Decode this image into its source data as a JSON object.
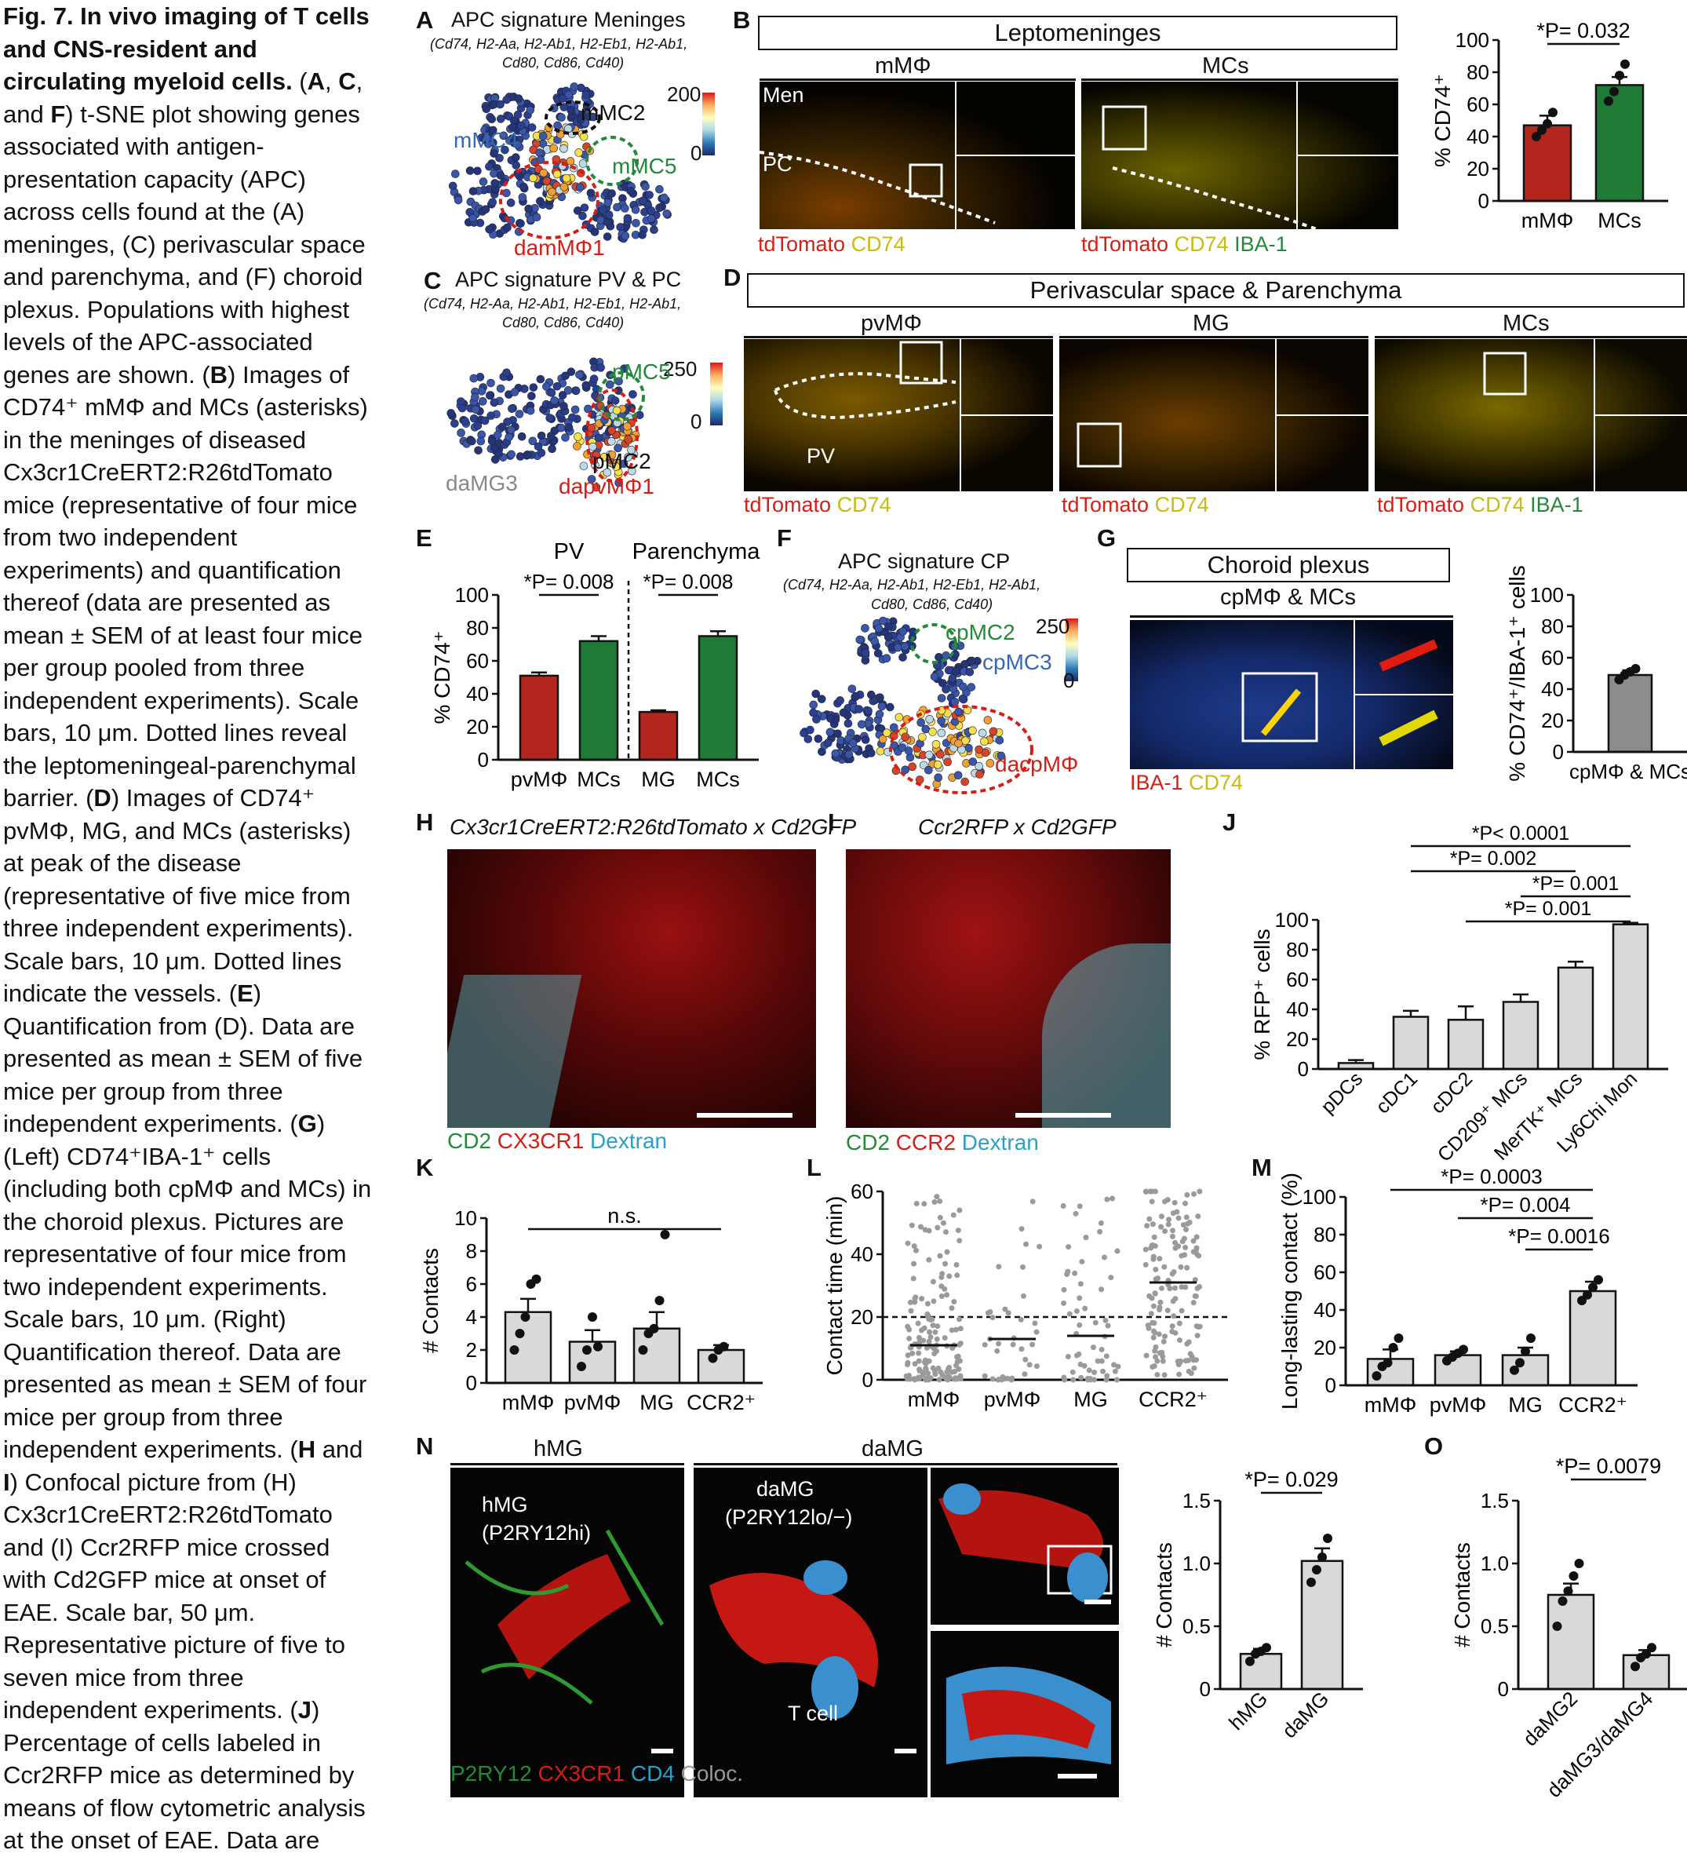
{
  "caption_segments": [
    {
      "text": "Fig. 7. In vivo imaging of T cells and CNS-resident and circulating myeloid cells.",
      "bold": true
    },
    {
      "text": " (",
      "bold": false
    },
    {
      "text": "A",
      "bold": true
    },
    {
      "text": ", ",
      "bold": false
    },
    {
      "text": "C",
      "bold": true
    },
    {
      "text": ", and ",
      "bold": false
    },
    {
      "text": "F",
      "bold": true
    },
    {
      "text": ") t-SNE plot showing genes associated with antigen-presentation capacity (APC) across cells found at the (A) meninges, (C) perivascular space and parenchyma, and (F) choroid plexus. Populations with highest levels of the APC-associated genes are shown. (",
      "bold": false
    },
    {
      "text": "B",
      "bold": true
    },
    {
      "text": ") Images of CD74⁺ mMΦ and MCs (asterisks) in the meninges of diseased Cx3cr1CreERT2:R26tdTomato mice (representative of four mice from two independent experiments) and quantification thereof (data are presented as mean ± SEM of at least four mice per group pooled from three independent experiments). Scale bars, 10 μm. Dotted lines reveal the leptomeningeal-parenchymal barrier. (",
      "bold": false
    },
    {
      "text": "D",
      "bold": true
    },
    {
      "text": ") Images of CD74⁺ pvMΦ, MG, and MCs (asterisks) at peak of the disease (representative of five mice from three independent experiments). Scale bars, 10 μm. Dotted lines indicate the vessels. (",
      "bold": false
    },
    {
      "text": "E",
      "bold": true
    },
    {
      "text": ") Quantification from (D). Data are presented as mean ± SEM of five mice per group from three independent experiments. (",
      "bold": false
    },
    {
      "text": "G",
      "bold": true
    },
    {
      "text": ") (Left) CD74⁺IBA-1⁺ cells (including both cpMΦ and MCs) in the choroid plexus. Pictures are representative of four mice from two independent experiments. Scale bars, 10 μm. (Right) Quantification thereof. Data are presented as mean ± SEM of four mice per group from three independent experiments. (",
      "bold": false
    },
    {
      "text": "H",
      "bold": true
    },
    {
      "text": " and ",
      "bold": false
    },
    {
      "text": "I",
      "bold": true
    },
    {
      "text": ") Confocal picture from (H) Cx3cr1CreERT2:R26tdTomato and (I) Ccr2RFP mice crossed with Cd2GFP mice at onset of EAE. Scale bar, 50 μm. Representative picture of five to seven mice from three independent experiments. (",
      "bold": false
    },
    {
      "text": "J",
      "bold": true
    },
    {
      "text": ") Percentage of cells labeled in Ccr2RFP mice as determined by means of flow cytometric analysis at the onset of EAE. Data are",
      "bold": false
    }
  ],
  "panelA": {
    "label": "A",
    "title": "APC signature Meninges",
    "genes": "(Cd74, H2-Aa, H2-Ab1, H2-Eb1, H2-Ab1,",
    "genes2": "Cd80, Cd86, Cd40)",
    "scale_max": "200",
    "scale_min": "0",
    "clusters": [
      "mMC2",
      "mMC4",
      "mMC5",
      "damMΦ1"
    ]
  },
  "panelB": {
    "label": "B",
    "header": "Leptomeninges",
    "col1": "mMΦ",
    "col2": "MCs",
    "men": "Men",
    "pc": "PC",
    "legend1": [
      {
        "t": "tdTomato",
        "c": "red"
      },
      {
        "t": " CD74",
        "c": "yel"
      }
    ],
    "legend2": [
      {
        "t": "tdTomato",
        "c": "red"
      },
      {
        "t": " CD74",
        "c": "yel"
      },
      {
        "t": " IBA-1",
        "c": "grn"
      }
    ]
  },
  "chartB": {
    "ylabel": "% CD74⁺",
    "stat": "*P= 0.032",
    "yticks": [
      "0",
      "20",
      "40",
      "60",
      "80",
      "100"
    ],
    "chart_data": {
      "type": "bar",
      "categories": [
        "mMΦ",
        "MCs"
      ],
      "values": [
        47,
        72
      ],
      "sem": [
        6,
        5
      ],
      "points": [
        [
          40,
          44,
          48,
          55
        ],
        [
          62,
          68,
          78,
          85
        ]
      ],
      "ylim": [
        0,
        100
      ],
      "colors": [
        "#b3261e",
        "#1f7a36"
      ]
    }
  },
  "panelC": {
    "label": "C",
    "title": "APC signature PV & PC",
    "genes": "(Cd74, H2-Aa, H2-Ab1, H2-Eb1, H2-Ab1,",
    "genes2": "Cd80, Cd86, Cd40)",
    "scale_max": "250",
    "scale_min": "0",
    "clusters": [
      "pMC5",
      "pMC2",
      "daMG3",
      "dapvMΦ1"
    ]
  },
  "panelD": {
    "label": "D",
    "header": "Perivascular space & Parenchyma",
    "cols": [
      "pvMΦ",
      "MG",
      "MCs"
    ],
    "pv": "PV",
    "legend1": [
      {
        "t": "tdTomato",
        "c": "red"
      },
      {
        "t": " CD74",
        "c": "yel"
      }
    ],
    "legend2": [
      {
        "t": "tdTomato",
        "c": "red"
      },
      {
        "t": " CD74",
        "c": "yel"
      }
    ],
    "legend3": [
      {
        "t": "tdTomato",
        "c": "red"
      },
      {
        "t": " CD74",
        "c": "yel"
      },
      {
        "t": " IBA-1",
        "c": "grn"
      }
    ]
  },
  "chartE": {
    "label": "E",
    "ylabel": "% CD74⁺",
    "group1": "PV",
    "group2": "Parenchyma",
    "stat1": "*P= 0.008",
    "stat2": "*P= 0.008",
    "yticks": [
      "0",
      "20",
      "40",
      "60",
      "80",
      "100"
    ],
    "chart_data": {
      "type": "bar",
      "categories": [
        "pvMΦ",
        "MCs",
        "MG",
        "MCs"
      ],
      "values": [
        51,
        72,
        29,
        75
      ],
      "sem": [
        2,
        3,
        1,
        3
      ],
      "ylim": [
        0,
        100
      ],
      "colors": [
        "#b3261e",
        "#1f7a36",
        "#b3261e",
        "#1f7a36"
      ]
    }
  },
  "panelF": {
    "label": "F",
    "title": "APC signature CP",
    "genes": "(Cd74, H2-Aa, H2-Ab1, H2-Eb1, H2-Ab1,",
    "genes2": "Cd80, Cd86, Cd40)",
    "scale_max": "250",
    "scale_min": "0",
    "clusters": [
      "cpMC2",
      "cpMC3",
      "dacpMΦ"
    ]
  },
  "panelG": {
    "label": "G",
    "header1": "Choroid plexus",
    "header2": "cpMΦ & MCs",
    "legend": [
      {
        "t": "IBA-1",
        "c": "red"
      },
      {
        "t": " CD74",
        "c": "yel"
      }
    ]
  },
  "chartG": {
    "ylabel": "% CD74⁺/IBA-1⁺ cells",
    "yticks": [
      "0",
      "20",
      "40",
      "60",
      "80",
      "100"
    ],
    "chart_data": {
      "type": "bar",
      "categories": [
        "cpMΦ & MCs"
      ],
      "values": [
        49
      ],
      "sem": [
        3
      ],
      "ylim": [
        0,
        100
      ],
      "colors": [
        "#8c8c8c"
      ]
    }
  },
  "panelH": {
    "label": "H",
    "title": "Cx3cr1CreERT2:R26tdTomato x Cd2GFP",
    "legend": [
      {
        "t": "CD2",
        "c": "grn"
      },
      {
        "t": " CX3CR1",
        "c": "red"
      },
      {
        "t": " Dextran",
        "c": "cyan"
      }
    ]
  },
  "panelI": {
    "label": "I",
    "title": "Ccr2RFP x Cd2GFP",
    "legend": [
      {
        "t": "CD2",
        "c": "grn"
      },
      {
        "t": " CCR2",
        "c": "red"
      },
      {
        "t": " Dextran",
        "c": "cyan"
      }
    ]
  },
  "chartJ": {
    "label": "J",
    "ylabel": "% RFP⁺ cells",
    "stats": [
      "*P< 0.0001",
      "*P= 0.002",
      "*P= 0.001",
      "*P= 0.001"
    ],
    "yticks": [
      "0",
      "20",
      "40",
      "60",
      "80",
      "100"
    ],
    "chart_data": {
      "type": "bar",
      "categories": [
        "pDCs",
        "cDC1",
        "cDC2",
        "CD209⁺ MCs",
        "MerTK⁺ MCs",
        "Ly6Chi Mon"
      ],
      "values": [
        4,
        35,
        33,
        45,
        68,
        97
      ],
      "sem": [
        2,
        4,
        9,
        5,
        4,
        1
      ],
      "ylim": [
        0,
        100
      ],
      "colors": [
        "#d9d9d9"
      ]
    }
  },
  "chartK": {
    "label": "K",
    "ylabel": "# Contacts",
    "stat": "n.s.",
    "yticks": [
      "0",
      "2",
      "4",
      "6",
      "8",
      "10"
    ],
    "chart_data": {
      "type": "bar",
      "categories": [
        "mMΦ",
        "pvMΦ",
        "MG",
        "CCR2⁺"
      ],
      "values": [
        4.3,
        2.5,
        3.3,
        2.0
      ],
      "sem": [
        0.8,
        0.7,
        1.0,
        0.3
      ],
      "ylim": [
        0,
        10
      ],
      "colors": [
        "#d9d9d9"
      ]
    }
  },
  "chartL": {
    "label": "L",
    "ylabel": "Contact time (min)",
    "yticks": [
      "0",
      "20",
      "40",
      "60"
    ],
    "chart_data": {
      "type": "scatter",
      "categories": [
        "mMΦ",
        "pvMΦ",
        "MG",
        "CCR2⁺"
      ],
      "means": [
        11,
        13,
        14,
        31
      ],
      "threshold": 20,
      "ylim": [
        0,
        60
      ]
    }
  },
  "chartM": {
    "label": "M",
    "ylabel": "Long-lasting contact (%)",
    "stats": [
      "*P= 0.0003",
      "*P= 0.004",
      "*P= 0.0016"
    ],
    "yticks": [
      "0",
      "20",
      "40",
      "60",
      "80",
      "100"
    ],
    "chart_data": {
      "type": "bar",
      "categories": [
        "mMΦ",
        "pvMΦ",
        "MG",
        "CCR2⁺"
      ],
      "values": [
        14,
        16,
        16,
        50
      ],
      "sem": [
        5,
        2,
        4,
        5
      ],
      "ylim": [
        0,
        100
      ],
      "colors": [
        "#d9d9d9"
      ]
    }
  },
  "panelN": {
    "label": "N",
    "col1": "hMG",
    "col2": "daMG",
    "lab_hmg": "hMG",
    "lab_hmg2": "(P2RY12hi)",
    "lab_damg": "daMG",
    "lab_damg2": "(P2RY12lo/−)",
    "tcell": "T cell",
    "legend": [
      {
        "t": "P2RY12",
        "c": "grn"
      },
      {
        "t": " CX3CR1",
        "c": "red"
      },
      {
        "t": " CD4",
        "c": "cyan"
      },
      {
        "t": " Coloc.",
        "c": "gray"
      }
    ]
  },
  "chartN": {
    "ylabel": "# Contacts",
    "stat": "*P= 0.029",
    "yticks": [
      "0",
      "0.5",
      "1.0",
      "1.5"
    ],
    "chart_data": {
      "type": "bar",
      "categories": [
        "hMG",
        "daMG"
      ],
      "values": [
        0.28,
        1.02
      ],
      "sem": [
        0.04,
        0.1
      ],
      "ylim": [
        0,
        1.5
      ],
      "colors": [
        "#d9d9d9"
      ]
    }
  },
  "chartO": {
    "label": "O",
    "ylabel": "# Contacts",
    "stat": "*P= 0.0079",
    "yticks": [
      "0",
      "0.5",
      "1.0",
      "1.5"
    ],
    "chart_data": {
      "type": "bar",
      "categories": [
        "daMG2",
        "daMG3/daMG4"
      ],
      "values": [
        0.75,
        0.27
      ],
      "sem": [
        0.09,
        0.04
      ],
      "ylim": [
        0,
        1.5
      ],
      "colors": [
        "#d9d9d9"
      ]
    }
  }
}
